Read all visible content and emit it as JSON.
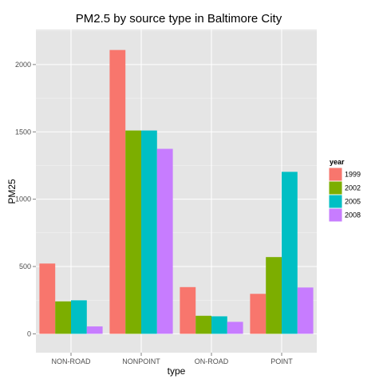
{
  "chart_data": {
    "type": "bar",
    "title": "PM2.5 by source type in Baltimore City",
    "xlabel": "type",
    "ylabel": "PM25",
    "categories": [
      "NON-ROAD",
      "NONPOINT",
      "ON-ROAD",
      "POINT"
    ],
    "ylim": [
      -140,
      2260
    ],
    "yticks": [
      0,
      500,
      1000,
      1500,
      2000
    ],
    "ytick_labels": [
      "0",
      "500",
      "1000",
      "1500",
      "2000"
    ],
    "grid": true,
    "legend": {
      "title": "year",
      "position": "right"
    },
    "series": [
      {
        "name": "1999",
        "color": "#F8766D",
        "values": [
          522,
          2108,
          347,
          297
        ]
      },
      {
        "name": "2002",
        "color": "#7CAE00",
        "values": [
          241,
          1510,
          134,
          570
        ]
      },
      {
        "name": "2005",
        "color": "#00BFC4",
        "values": [
          249,
          1510,
          130,
          1203
        ]
      },
      {
        "name": "2008",
        "color": "#C77CFF",
        "values": [
          55,
          1374,
          89,
          344
        ]
      }
    ]
  }
}
